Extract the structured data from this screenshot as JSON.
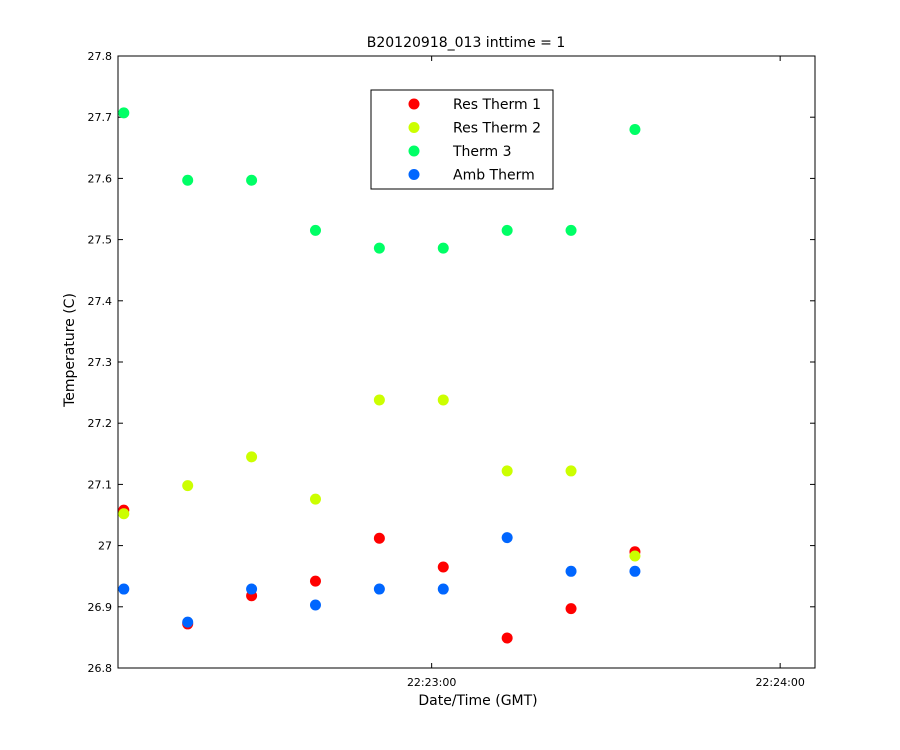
{
  "chart_data": {
    "type": "scatter",
    "title": "B20120918_013 inttime = 1",
    "xlabel": "Date/Time (GMT)",
    "ylabel": "Temperature (C)",
    "ylim": [
      26.8,
      27.8
    ],
    "yticks": [
      26.8,
      26.9,
      27,
      27.1,
      27.2,
      27.3,
      27.4,
      27.5,
      27.6,
      27.7,
      27.8
    ],
    "ytick_labels": [
      "26.8",
      "26.9",
      "27",
      "27.1",
      "27.2",
      "27.3",
      "27.4",
      "27.5",
      "27.6",
      "27.7",
      "27.8"
    ],
    "xlim": [
      "22:22:06",
      "22:24:06"
    ],
    "xticks": [
      "22:23:00",
      "22:24:00"
    ],
    "xtick_labels": [
      "22:23:00",
      "22:24:00"
    ],
    "grid": false,
    "legend_position": "top-center",
    "x": [
      "22:22:07",
      "22:22:18",
      "22:22:29",
      "22:22:40",
      "22:22:51",
      "22:23:02",
      "22:23:13",
      "22:23:24",
      "22:23:35"
    ],
    "series": [
      {
        "name": "Res Therm 1",
        "color": "#ff0000",
        "values": [
          27.058,
          26.872,
          26.918,
          26.942,
          27.012,
          26.965,
          26.849,
          26.897,
          26.99
        ]
      },
      {
        "name": "Res Therm 2",
        "color": "#ccff00",
        "values": [
          27.052,
          27.098,
          27.145,
          27.076,
          27.238,
          27.238,
          27.122,
          27.122,
          26.983
        ]
      },
      {
        "name": "Therm 3",
        "color": "#00ff66",
        "values": [
          27.707,
          27.597,
          27.597,
          27.515,
          27.486,
          27.486,
          27.515,
          27.515,
          27.68
        ]
      },
      {
        "name": "Amb Therm",
        "color": "#0066ff",
        "values": [
          26.929,
          26.875,
          26.929,
          26.903,
          26.929,
          26.929,
          27.013,
          26.958,
          26.958
        ]
      }
    ]
  }
}
